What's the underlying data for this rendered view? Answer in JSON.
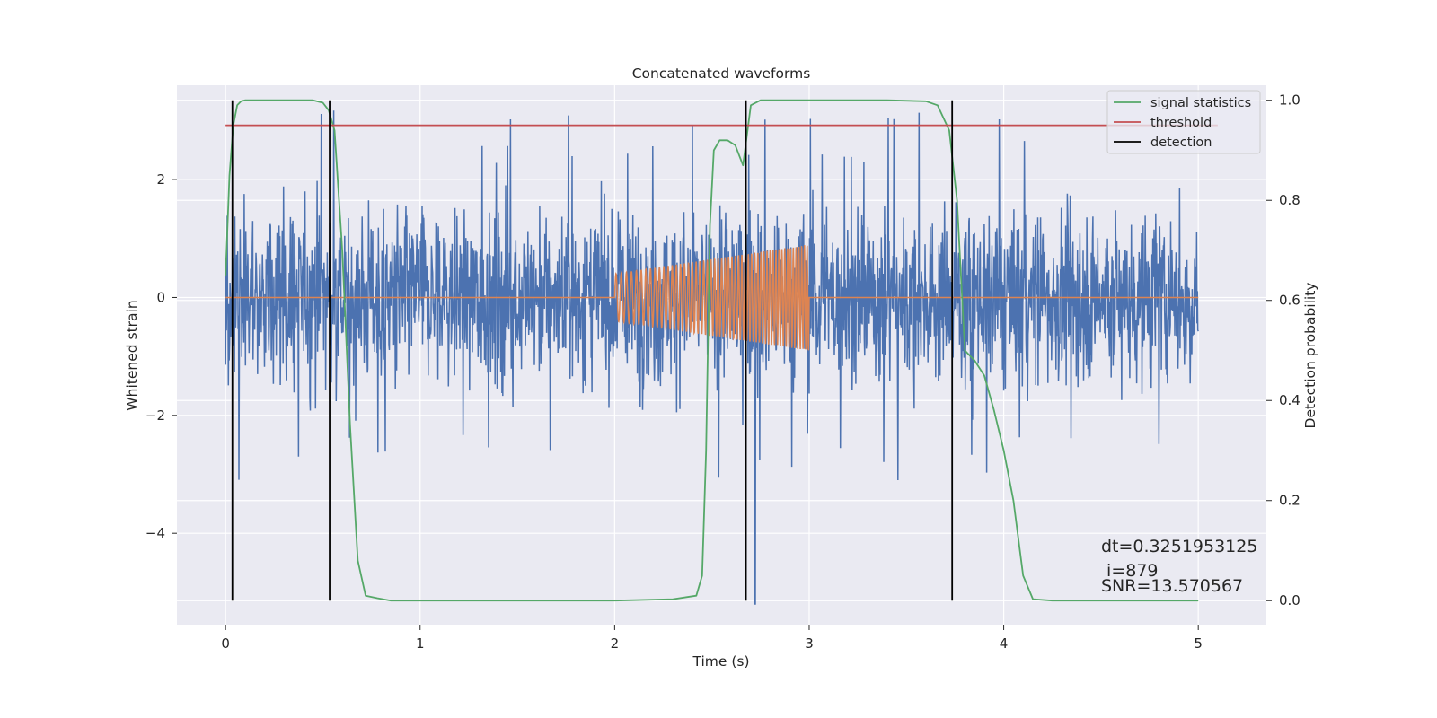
{
  "chart_data": {
    "type": "line",
    "title": "Concatenated waveforms",
    "xlabel": "Time (s)",
    "ylabel": "Whitened strain",
    "ylabel_right": "Detection probability",
    "xlim": [
      -0.25,
      5.35
    ],
    "ylim": [
      -5.55,
      3.6
    ],
    "ylim_right": [
      -0.048,
      1.03
    ],
    "x_ticks": [
      "0",
      "1",
      "2",
      "3",
      "4",
      "5"
    ],
    "x_tick_values": [
      0,
      1,
      2,
      3,
      4,
      5
    ],
    "y_ticks": [
      "2",
      "0",
      "−2",
      "−4"
    ],
    "y_tick_values": [
      2,
      0,
      -2,
      -4
    ],
    "y_right_ticks": [
      "1.0",
      "0.8",
      "0.6",
      "0.4",
      "0.2",
      "0.0"
    ],
    "y_right_tick_values": [
      1.0,
      0.8,
      0.6,
      0.4,
      0.2,
      0.0
    ],
    "grid": true,
    "legend_position": "top-right",
    "colors": {
      "strain": "#4c72b0",
      "injected": "#dd8452",
      "signal_statistics": "#55a868",
      "threshold": "#c44e52",
      "detection": "#000000",
      "background": "#eaeaf2"
    },
    "series": [
      {
        "name": "signal statistics",
        "axis": "right",
        "x": [
          0.0,
          0.02,
          0.04,
          0.06,
          0.08,
          0.1,
          0.15,
          0.3,
          0.45,
          0.5,
          0.53,
          0.56,
          0.6,
          0.64,
          0.68,
          0.72,
          0.78,
          0.85,
          1.0,
          1.5,
          2.0,
          2.3,
          2.42,
          2.45,
          2.47,
          2.49,
          2.51,
          2.54,
          2.58,
          2.62,
          2.66,
          2.7,
          2.75,
          2.85,
          3.0,
          3.4,
          3.6,
          3.66,
          3.72,
          3.76,
          3.8,
          3.85,
          3.9,
          3.95,
          4.0,
          4.05,
          4.1,
          4.15,
          4.25,
          4.5,
          5.0
        ],
        "y": [
          0.65,
          0.85,
          0.95,
          0.99,
          0.998,
          1.0,
          1.0,
          1.0,
          1.0,
          0.995,
          0.98,
          0.94,
          0.7,
          0.35,
          0.08,
          0.01,
          0.005,
          0.0,
          0.0,
          0.0,
          0.0,
          0.003,
          0.01,
          0.05,
          0.3,
          0.75,
          0.9,
          0.92,
          0.92,
          0.91,
          0.87,
          0.99,
          1.0,
          1.0,
          1.0,
          1.0,
          0.998,
          0.99,
          0.94,
          0.8,
          0.5,
          0.48,
          0.45,
          0.38,
          0.3,
          0.2,
          0.05,
          0.003,
          0.0,
          0.0,
          0.0
        ]
      },
      {
        "name": "threshold",
        "axis": "right",
        "x": [
          0.0,
          5.1
        ],
        "y": [
          0.95,
          0.95
        ]
      },
      {
        "name": "detection",
        "axis": "right",
        "x": [
          0.035,
          0.535,
          2.675,
          3.735
        ],
        "y_range": [
          0.0,
          1.0
        ]
      },
      {
        "name": "",
        "axis": "left",
        "description_free": true,
        "x_range": [
          0.0,
          5.0
        ],
        "y_typical_range": [
          -2.3,
          2.3
        ],
        "y_extremes": [
          -5.2,
          3.15
        ]
      },
      {
        "name": "",
        "axis": "left",
        "x_range": [
          0.0,
          5.0
        ],
        "chirp_x_range": [
          2.0,
          3.0
        ],
        "chirp_amplitude": [
          0.4,
          0.9
        ]
      }
    ],
    "annotations": [
      "dt=0.3251953125",
      " i=879",
      "SNR=13.570567"
    ]
  }
}
